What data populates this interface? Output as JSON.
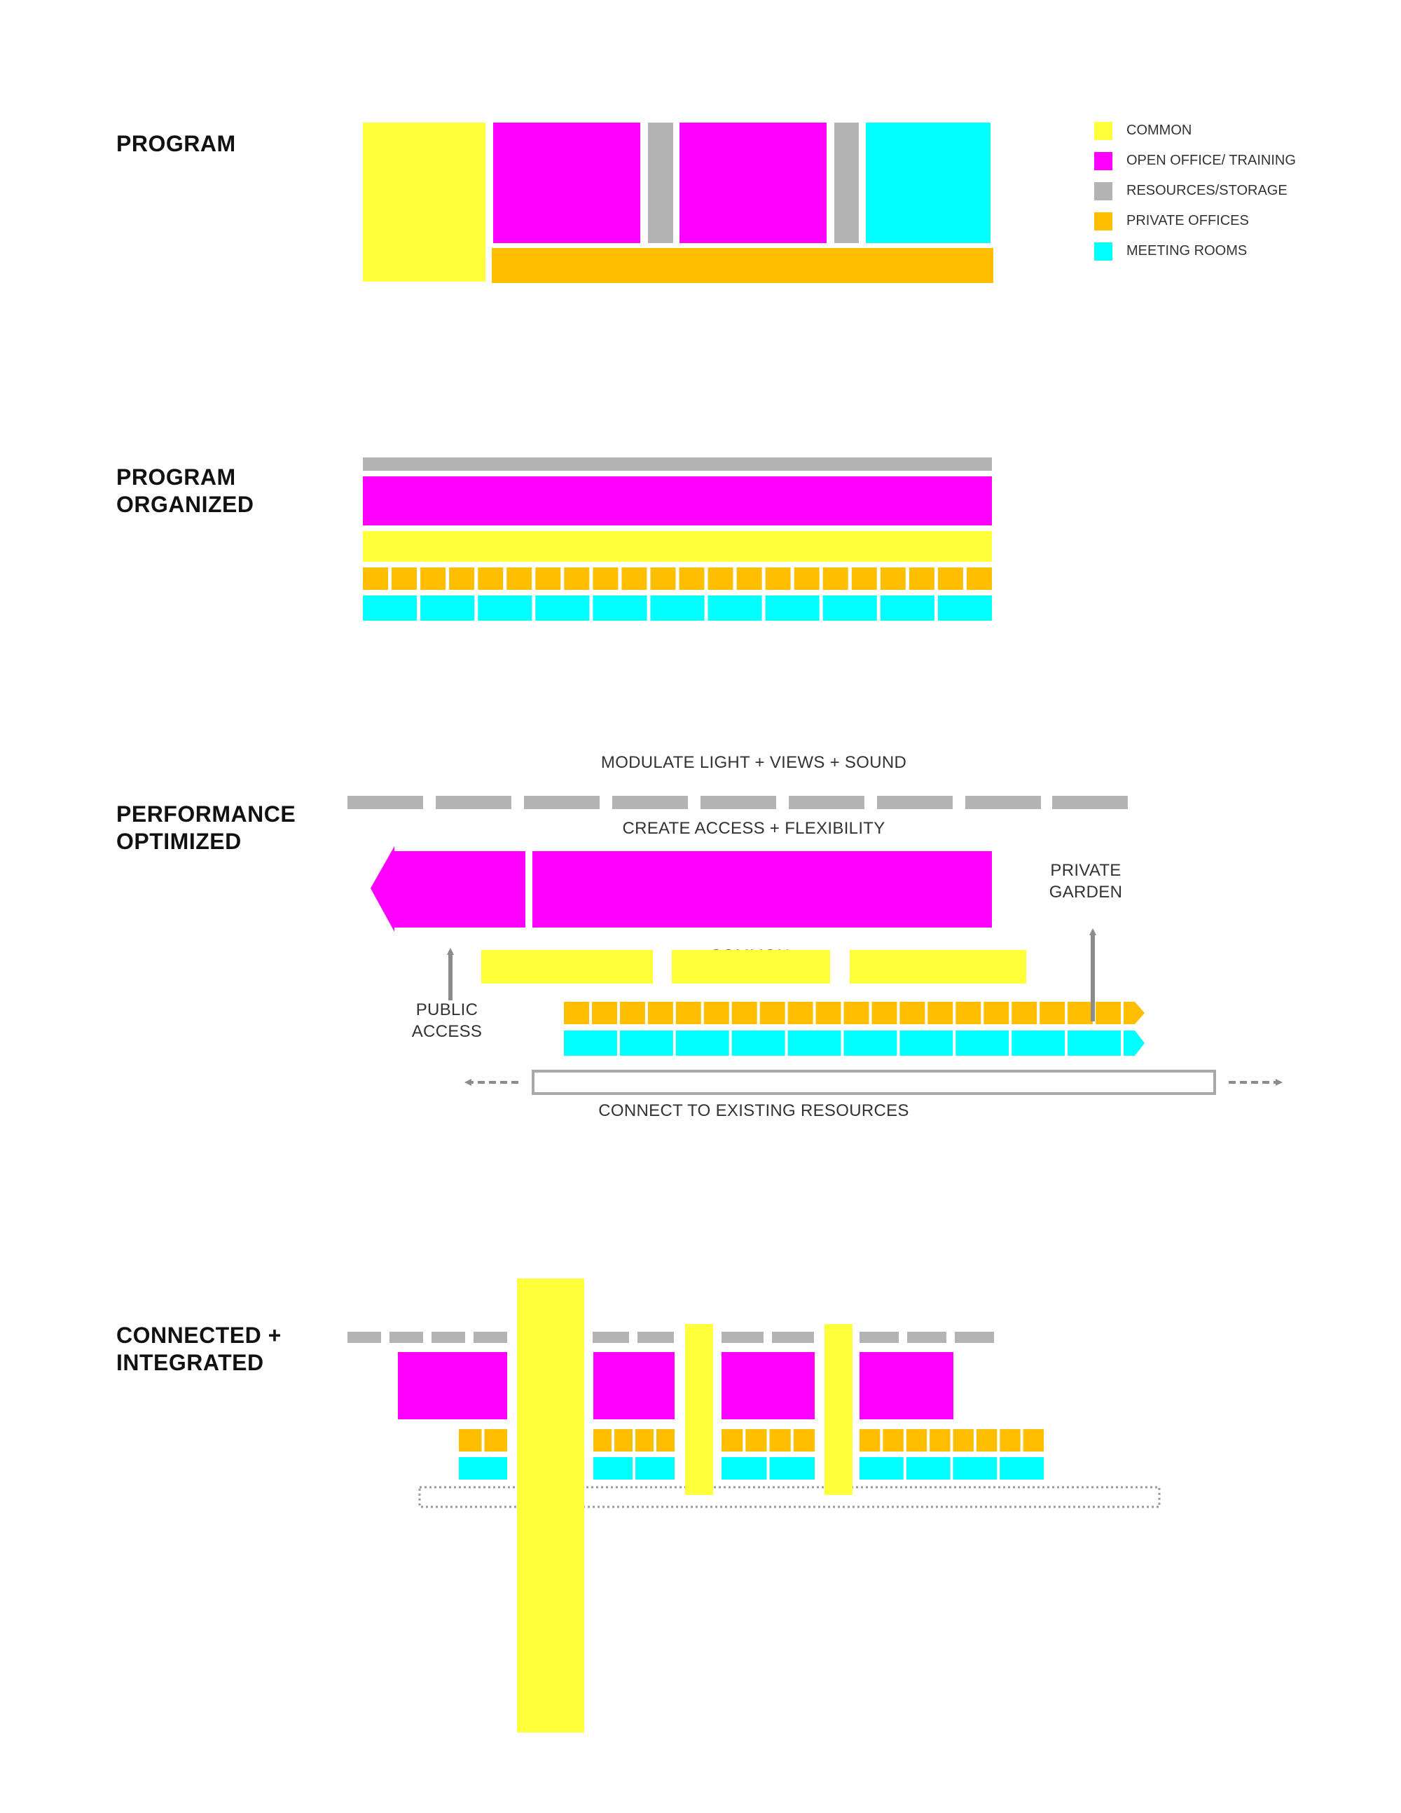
{
  "colors": {
    "common": "#FFFF3A",
    "open_office": "#FF00FF",
    "resources": "#B3B3B3",
    "private_offices": "#FFBF00",
    "meeting_rooms": "#00FFFF",
    "arrow": "#8C8C8C"
  },
  "sections": {
    "program": {
      "lines": [
        "PROGRAM"
      ]
    },
    "organized": {
      "lines": [
        "PROGRAM",
        "ORGANIZED"
      ]
    },
    "performance": {
      "lines": [
        "PERFORMANCE",
        "OPTIMIZED"
      ]
    },
    "connected": {
      "lines": [
        "CONNECTED +",
        "INTEGRATED"
      ]
    }
  },
  "legend": [
    {
      "label": "COMMON",
      "color_key": "common"
    },
    {
      "label": "OPEN OFFICE/ TRAINING",
      "color_key": "open_office"
    },
    {
      "label": "RESOURCES/STORAGE",
      "color_key": "resources"
    },
    {
      "label": "PRIVATE OFFICES",
      "color_key": "private_offices"
    },
    {
      "label": "MEETING ROOMS",
      "color_key": "meeting_rooms"
    }
  ],
  "annotations": {
    "modulate": "MODULATE LIGHT + VIEWS + SOUND",
    "create_access": "CREATE ACCESS + FLEXIBILITY",
    "private_garden": [
      "PRIVATE",
      "GARDEN"
    ],
    "common": "COMMON",
    "public_access": [
      "PUBLIC",
      "ACCESS"
    ],
    "connect": "CONNECT TO EXISTING RESOURCES"
  }
}
